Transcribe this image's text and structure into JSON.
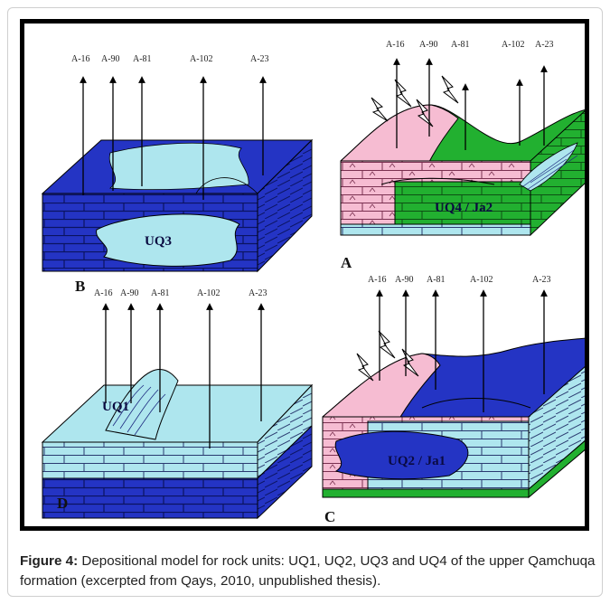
{
  "figure": {
    "wells": [
      "A-16",
      "A-90",
      "A-81",
      "A-102",
      "A-23"
    ],
    "panels": [
      {
        "letter": "B",
        "unit": "UQ3"
      },
      {
        "letter": "A",
        "unit": "UQ4 / Ja2"
      },
      {
        "letter": "D",
        "unit": "UQ1"
      },
      {
        "letter": "C",
        "unit": "UQ2 / Ja1"
      }
    ],
    "colors": {
      "dark_blue": "#2434c4",
      "light_blue": "#aee6ee",
      "pink": "#f6bcd2",
      "green": "#22b030",
      "outline": "#000000"
    }
  },
  "caption": {
    "label": "Figure 4:",
    "text": " Depositional model for rock units: UQ1, UQ2, UQ3 and UQ4 of the upper Qamchuqa formation (excerpted from Qays, 2010, unpublished thesis)."
  }
}
